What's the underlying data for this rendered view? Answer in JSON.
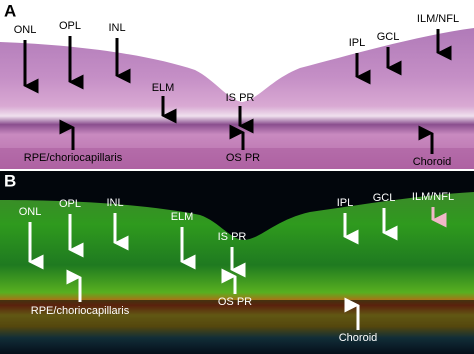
{
  "panels": [
    {
      "letter": "A",
      "labels": [
        "ONL",
        "OPL",
        "INL",
        "ELM",
        "IS PR",
        "IPL",
        "GCL",
        "ILM/NFL",
        "RPE/choriocapillaris",
        "OS PR",
        "Choroid"
      ]
    },
    {
      "letter": "B",
      "labels": [
        "ONL",
        "OPL",
        "INL",
        "ELM",
        "IS PR",
        "IPL",
        "GCL",
        "ILM/NFL",
        "RPE/choriocapillaris",
        "OS PR",
        "Choroid"
      ]
    }
  ]
}
